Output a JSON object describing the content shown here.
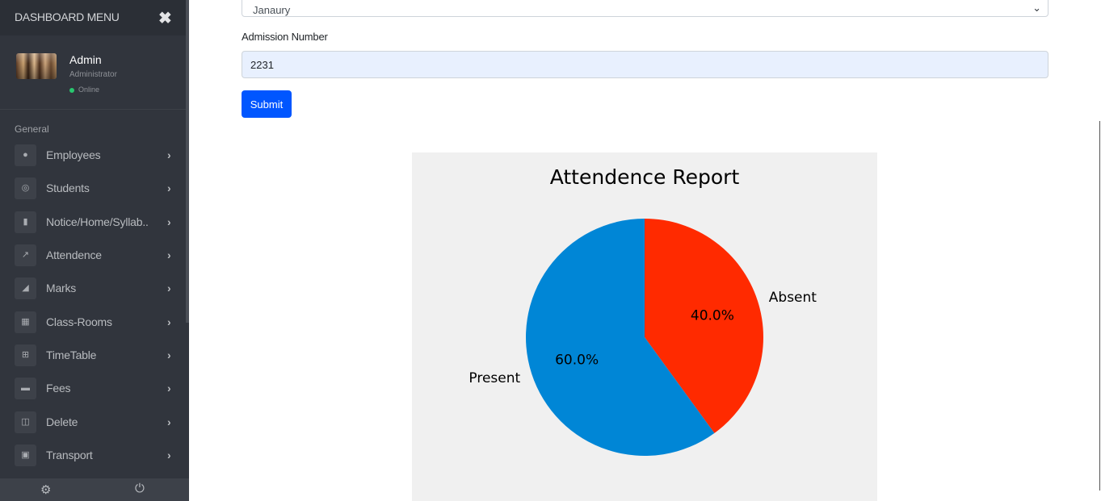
{
  "sidebar": {
    "title": "DASHBOARD MENU",
    "close_icon": "close-icon",
    "profile": {
      "name": "Admin",
      "role": "Administrator",
      "status": "Online",
      "status_color": "#28c76f"
    },
    "section_label": "General",
    "items": [
      {
        "label": "Employees",
        "icon": "user-icon"
      },
      {
        "label": "Students",
        "icon": "student-icon"
      },
      {
        "label": "Notice/Home/Syllab..",
        "icon": "document-icon"
      },
      {
        "label": "Attendence",
        "icon": "chart-line-icon"
      },
      {
        "label": "Marks",
        "icon": "chart-area-icon"
      },
      {
        "label": "Class-Rooms",
        "icon": "building-icon"
      },
      {
        "label": "TimeTable",
        "icon": "table-icon"
      },
      {
        "label": "Fees",
        "icon": "credit-card-icon"
      },
      {
        "label": "Delete",
        "icon": "trash-icon"
      },
      {
        "label": "Transport",
        "icon": "bus-icon"
      }
    ],
    "footer": {
      "settings_icon": "gear-icon",
      "logout_icon": "power-icon"
    }
  },
  "form": {
    "month_select": {
      "value": "Janaury"
    },
    "admission": {
      "label": "Admission Number",
      "value": "2231"
    },
    "submit_label": "Submit"
  },
  "chart_data": {
    "type": "pie",
    "title": "Attendence Report",
    "labels": [
      "Absent",
      "Present"
    ],
    "values": [
      40.0,
      60.0
    ],
    "value_labels": [
      "40.0%",
      "60.0%"
    ],
    "colors": [
      "#ff2a00",
      "#0086d6"
    ],
    "background": "#f0f0f0"
  }
}
